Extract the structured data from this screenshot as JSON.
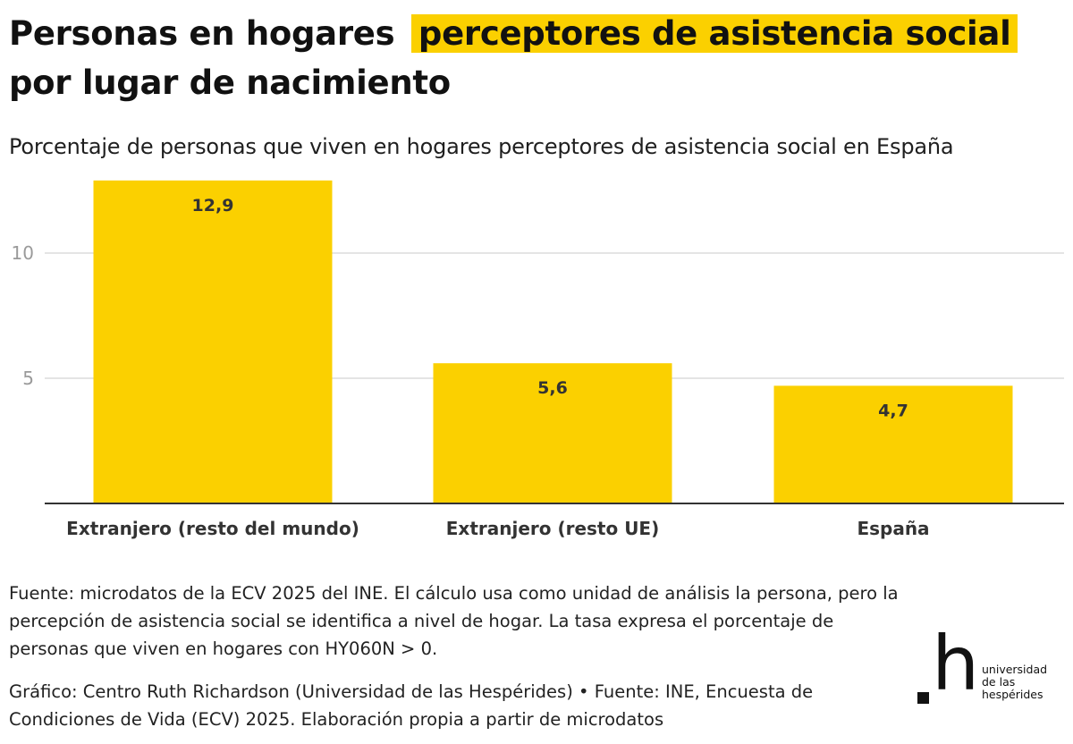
{
  "title": {
    "part1": "Personas en hogares",
    "highlight": "perceptores de asistencia social",
    "part2": "por lugar de nacimiento"
  },
  "subtitle": "Porcentaje de personas que viven en hogares perceptores de asistencia social en España",
  "chart_data": {
    "type": "bar",
    "categories": [
      "Extranjero (resto del mundo)",
      "Extranjero (resto UE)",
      "España"
    ],
    "values": [
      12.9,
      5.6,
      4.7
    ],
    "value_labels": [
      "12,9",
      "5,6",
      "4,7"
    ],
    "yticks": [
      5,
      10
    ],
    "ytick_labels": [
      "5",
      "10"
    ],
    "ylim": [
      0,
      14
    ],
    "title": "",
    "xlabel": "",
    "ylabel": "",
    "bar_color": "#fbd000",
    "grid": true
  },
  "note": "Fuente: microdatos de la ECV 2025 del INE. El cálculo usa como unidad de análisis la persona, pero la percepción de asistencia social se identifica a nivel de hogar. La tasa expresa el porcentaje de personas que viven en hogares con HY060N > 0.",
  "credit": "Gráfico: Centro Ruth Richardson (Universidad de las Hespérides) • Fuente: INE, Encuesta de Condiciones de Vida (ECV) 2025. Elaboración propia a partir de microdatos",
  "logo": {
    "mark": "h",
    "lines": [
      "universidad",
      "de las",
      "hespérides"
    ]
  },
  "colors": {
    "highlight": "#fbd000",
    "bar": "#fbd000"
  }
}
